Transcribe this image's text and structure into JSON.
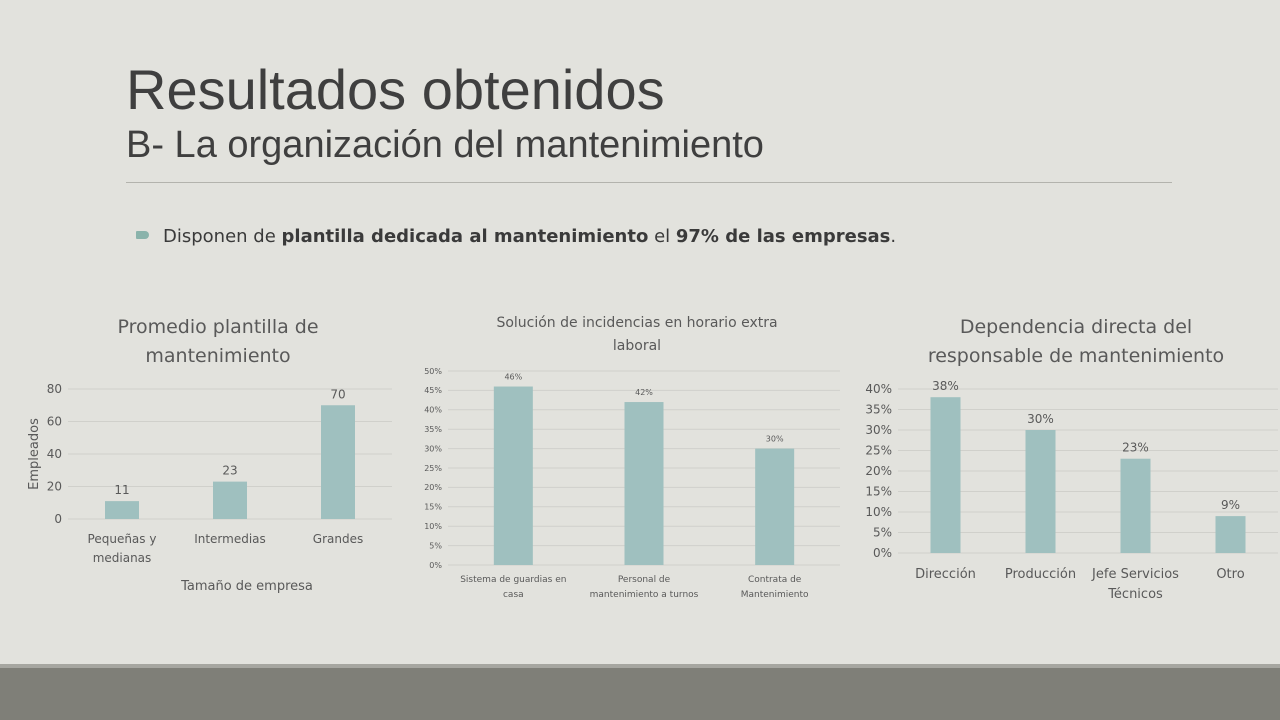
{
  "slide": {
    "title": "Resultados obtenidos",
    "subtitle": "B- La organización del mantenimiento",
    "bullet": {
      "pre": "Disponen de ",
      "bold1": "plantilla dedicada al mantenimiento",
      "mid": " el ",
      "bold2": "97% de las empresas",
      "post": "."
    }
  },
  "colors": {
    "bar": "#9fc0bf",
    "grid": "#d0d0cb",
    "text": "#595959"
  },
  "chart_data": [
    {
      "type": "bar",
      "title": "Promedio plantilla de mantenimiento",
      "xlabel": "Tamaño de empresa",
      "ylabel": "Empleados",
      "categories": [
        "Pequeñas y medianas",
        "Intermedias",
        "Grandes"
      ],
      "values": [
        11,
        23,
        70
      ],
      "data_labels": [
        "11",
        "23",
        "70"
      ],
      "ylim": [
        0,
        80
      ],
      "yticks": [
        "0",
        "20",
        "40",
        "60",
        "80"
      ],
      "grid": true
    },
    {
      "type": "bar",
      "title": "Solución de incidencias en horario extra laboral",
      "xlabel": "",
      "ylabel": "",
      "categories": [
        "Sistema de guardias en casa",
        "Personal de mantenimiento a turnos",
        "Contrata de Mantenimiento"
      ],
      "values": [
        46,
        42,
        30
      ],
      "data_labels": [
        "46%",
        "42%",
        "30%"
      ],
      "ylim": [
        0,
        50
      ],
      "yticks": [
        "0%",
        "5%",
        "10%",
        "15%",
        "20%",
        "25%",
        "30%",
        "35%",
        "40%",
        "45%",
        "50%"
      ],
      "grid": true
    },
    {
      "type": "bar",
      "title": "Dependencia directa del responsable de mantenimiento",
      "xlabel": "",
      "ylabel": "",
      "categories": [
        "Dirección",
        "Producción",
        "Jefe Servicios Técnicos",
        "Otro"
      ],
      "values": [
        38,
        30,
        23,
        9
      ],
      "data_labels": [
        "38%",
        "30%",
        "23%",
        "9%"
      ],
      "ylim": [
        0,
        40
      ],
      "yticks": [
        "0%",
        "5%",
        "10%",
        "15%",
        "20%",
        "25%",
        "30%",
        "35%",
        "40%"
      ],
      "grid": true
    }
  ]
}
